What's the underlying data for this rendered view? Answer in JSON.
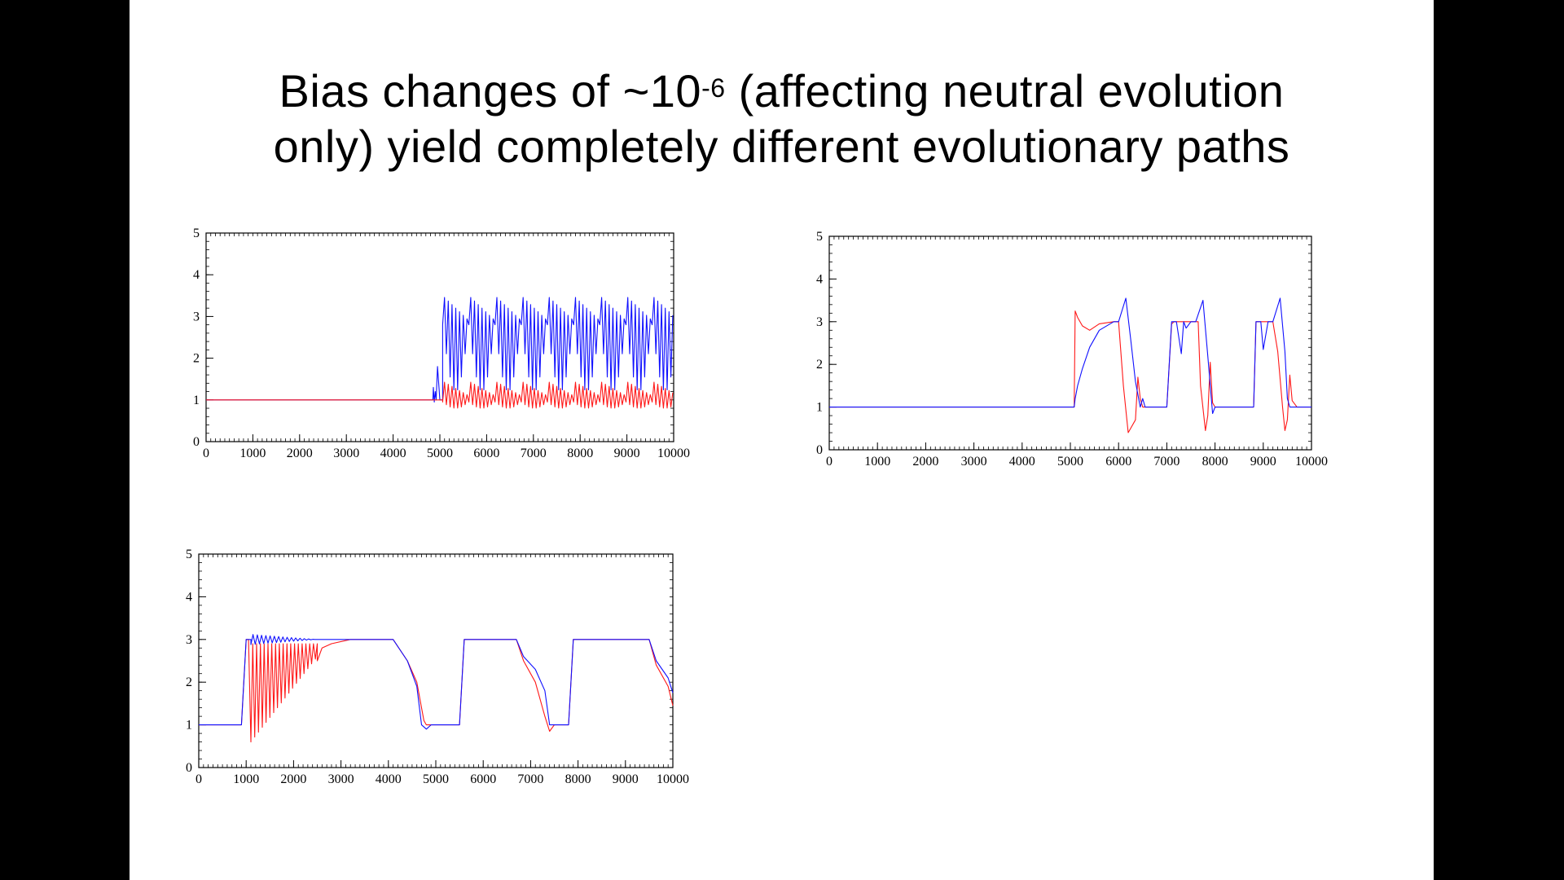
{
  "slide": {
    "title_line1_before": "Bias changes of ~10",
    "title_exponent": "-6",
    "title_line1_after": " (affecting neutral evolution",
    "title_line2": "only) yield completely different evolutionary paths"
  },
  "colors": {
    "blue": "#1010ff",
    "red": "#ff1818",
    "axis": "#000000",
    "background": "#ffffff"
  },
  "chart_data": [
    {
      "type": "line",
      "title": "",
      "xlabel": "",
      "ylabel": "",
      "xlim": [
        0,
        10000
      ],
      "ylim": [
        0,
        5
      ],
      "xticks": [
        0,
        1000,
        2000,
        3000,
        4000,
        5000,
        6000,
        7000,
        8000,
        9000,
        10000
      ],
      "yticks": [
        0,
        1,
        2,
        3,
        4,
        5
      ],
      "grid": false,
      "series": [
        {
          "color": "blue",
          "pattern": "oscillation",
          "x": [
            0,
            4850,
            4860,
            4880,
            4900,
            4920,
            4950,
            5000,
            5060
          ],
          "y": [
            1,
            1,
            1.3,
            0.95,
            1.2,
            1.0,
            1.8,
            1.0,
            1.0
          ],
          "oscillation": {
            "start": 5060,
            "end": 10000,
            "period_fast": 80,
            "period_slow": 560,
            "top_max": 3.5,
            "top_min": 2.9,
            "bottom_high": 2.8,
            "bottom_low": 1.2
          }
        },
        {
          "color": "red",
          "pattern": "oscillation",
          "x": [
            0,
            5060
          ],
          "y": [
            1,
            1
          ],
          "oscillation": {
            "start": 5060,
            "end": 10000,
            "period_fast": 80,
            "period_slow": 560,
            "top_max": 1.45,
            "top_min": 1.1,
            "bottom_high": 0.95,
            "bottom_low": 0.8
          }
        }
      ]
    },
    {
      "type": "line",
      "title": "",
      "xlabel": "",
      "ylabel": "",
      "xlim": [
        0,
        10000
      ],
      "ylim": [
        0,
        5
      ],
      "xticks": [
        0,
        1000,
        2000,
        3000,
        4000,
        5000,
        6000,
        7000,
        8000,
        9000,
        10000
      ],
      "yticks": [
        0,
        1,
        2,
        3,
        4,
        5
      ],
      "grid": false,
      "series": [
        {
          "color": "red",
          "x": [
            0,
            5080,
            5100,
            5150,
            5250,
            5400,
            5600,
            5900,
            6000,
            6100,
            6200,
            6350,
            6400,
            6450,
            6500,
            6600,
            7000,
            7100,
            7150,
            7200,
            7300,
            7400,
            7500,
            7650,
            7700,
            7800,
            7850,
            7900,
            7950,
            8000,
            8800,
            8850,
            8900,
            9000,
            9100,
            9200,
            9300,
            9400,
            9450,
            9500,
            9550,
            9600,
            9700,
            10000
          ],
          "y": [
            1,
            1,
            3.25,
            3.1,
            2.9,
            2.8,
            2.95,
            3.0,
            3.0,
            1.5,
            0.4,
            0.7,
            1.7,
            1.2,
            1.0,
            1.0,
            1.0,
            2.95,
            3.0,
            3.0,
            3.0,
            3.0,
            3.0,
            3.0,
            1.5,
            0.45,
            0.8,
            2.05,
            1.1,
            1.0,
            1.0,
            3.0,
            3.0,
            3.0,
            3.0,
            3.0,
            2.3,
            1.0,
            0.45,
            0.7,
            1.75,
            1.15,
            1.0,
            1.0
          ]
        },
        {
          "color": "blue",
          "x": [
            0,
            5080,
            5100,
            5150,
            5250,
            5400,
            5600,
            5900,
            6000,
            6150,
            6250,
            6350,
            6450,
            6500,
            6550,
            6600,
            7000,
            7100,
            7150,
            7200,
            7300,
            7350,
            7400,
            7500,
            7600,
            7750,
            7850,
            7950,
            8000,
            8800,
            8850,
            8950,
            9000,
            9100,
            9200,
            9350,
            9450,
            9500,
            9550,
            9600,
            10000
          ],
          "y": [
            1,
            1,
            1.2,
            1.5,
            1.9,
            2.4,
            2.8,
            3.0,
            3.0,
            3.55,
            2.6,
            1.6,
            1.0,
            1.2,
            1.0,
            1.0,
            1.0,
            3.0,
            3.0,
            3.0,
            2.25,
            3.0,
            2.85,
            3.0,
            3.0,
            3.5,
            2.2,
            0.85,
            1.0,
            1.0,
            3.0,
            3.0,
            2.35,
            3.0,
            3.0,
            3.55,
            2.3,
            1.2,
            1.0,
            1.0,
            1.0
          ]
        }
      ]
    },
    {
      "type": "line",
      "title": "",
      "xlabel": "",
      "ylabel": "",
      "xlim": [
        0,
        10000
      ],
      "ylim": [
        0,
        5
      ],
      "xticks": [
        0,
        1000,
        2000,
        3000,
        4000,
        5000,
        6000,
        7000,
        8000,
        9000,
        10000
      ],
      "yticks": [
        0,
        1,
        2,
        3,
        4,
        5
      ],
      "grid": false,
      "series": [
        {
          "color": "red",
          "x": [
            0,
            900,
            1000,
            1050,
            2500,
            2600,
            2800,
            3200,
            4100,
            4400,
            4600,
            4750,
            4800,
            5000,
            5500,
            5600,
            6700,
            6850,
            7100,
            7300,
            7400,
            7500,
            7800,
            7900,
            9500,
            9650,
            9900,
            10000
          ],
          "y": [
            1,
            1,
            3.0,
            3.0,
            2.5,
            2.8,
            2.9,
            3.0,
            3.0,
            2.5,
            2.0,
            1.1,
            1.0,
            1.0,
            1.0,
            3.0,
            3.0,
            2.5,
            2.0,
            1.2,
            0.85,
            1.0,
            1.0,
            3.0,
            3.0,
            2.4,
            1.9,
            1.45
          ],
          "oscillation": {
            "start": 1100,
            "end": 2500,
            "period_fast": 80,
            "top": 2.9,
            "bottom_start": 0.6,
            "bottom_end": 2.6
          }
        },
        {
          "color": "blue",
          "x": [
            0,
            900,
            1000,
            1100,
            2400,
            2500,
            4100,
            4400,
            4600,
            4700,
            4800,
            4900,
            5500,
            5600,
            6700,
            6850,
            7100,
            7300,
            7400,
            7500,
            7800,
            7900,
            9500,
            9650,
            9900,
            10000
          ],
          "y": [
            1,
            1,
            3.0,
            3.0,
            3.0,
            3.0,
            3.0,
            2.5,
            1.9,
            1.0,
            0.9,
            1.0,
            1.0,
            3.0,
            3.0,
            2.6,
            2.3,
            1.8,
            1.0,
            1.0,
            1.0,
            3.0,
            3.0,
            2.5,
            2.1,
            1.75
          ],
          "oscillation": {
            "start": 1100,
            "end": 2450,
            "period_fast": 90,
            "center": 3.0,
            "amp": 0.12
          }
        }
      ]
    }
  ]
}
